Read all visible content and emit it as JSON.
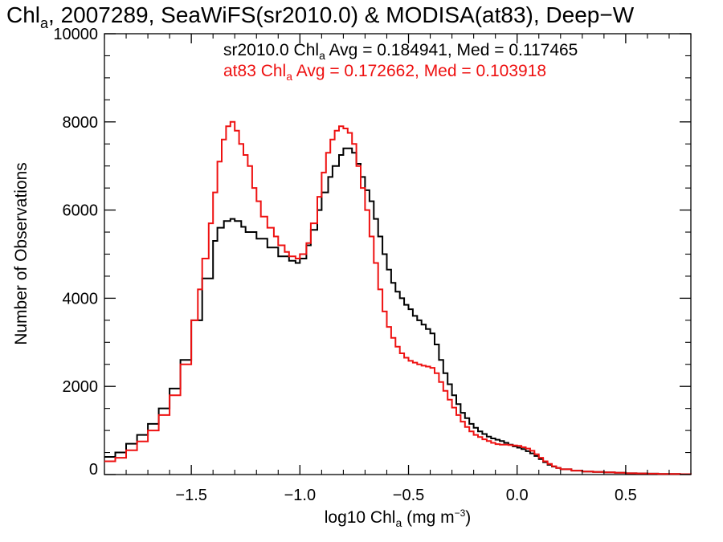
{
  "chart_data": {
    "type": "line",
    "step": true,
    "title": {
      "main": "Chl",
      "sub": "a",
      "rest": ", 2007289, SeaWiFS(sr2010.0) & MODISA(at83), Deep−W"
    },
    "xlabel": {
      "main": "log10 Chl",
      "sub": "a",
      "unit": " (mg m",
      "sup": "−3",
      "close": ")"
    },
    "ylabel": "Number of Observations",
    "xlim": [
      -1.9,
      0.8
    ],
    "ylim": [
      0,
      10000
    ],
    "xticks": [
      {
        "v": -1.5,
        "label": "−1.5"
      },
      {
        "v": -1.0,
        "label": "−1.0"
      },
      {
        "v": -0.5,
        "label": "−0.5"
      },
      {
        "v": 0.0,
        "label": "0.0"
      },
      {
        "v": 0.5,
        "label": "0.5"
      }
    ],
    "yticks": [
      {
        "v": 0,
        "label": "0"
      },
      {
        "v": 2000,
        "label": "2000"
      },
      {
        "v": 4000,
        "label": "4000"
      },
      {
        "v": 6000,
        "label": "6000"
      },
      {
        "v": 8000,
        "label": "8000"
      },
      {
        "v": 10000,
        "label": "10000"
      }
    ],
    "grid": false,
    "annotations": [
      {
        "prefix": "sr2010.0 Chl",
        "sub": "a",
        "suffix": " Avg = 0.184941, Med = 0.117465",
        "color": "#000000"
      },
      {
        "prefix": "at83 Chl",
        "sub": "a",
        "suffix": " Avg = 0.172662, Med = 0.103918",
        "color": "#ee1111"
      }
    ],
    "series": [
      {
        "color": "#000000",
        "x": [
          -1.9,
          -1.85,
          -1.8,
          -1.75,
          -1.7,
          -1.65,
          -1.6,
          -1.55,
          -1.5,
          -1.45,
          -1.4,
          -1.38,
          -1.35,
          -1.32,
          -1.3,
          -1.27,
          -1.25,
          -1.2,
          -1.15,
          -1.1,
          -1.05,
          -1.02,
          -1.0,
          -0.97,
          -0.95,
          -0.92,
          -0.9,
          -0.87,
          -0.85,
          -0.82,
          -0.8,
          -0.78,
          -0.76,
          -0.74,
          -0.72,
          -0.7,
          -0.68,
          -0.66,
          -0.64,
          -0.62,
          -0.6,
          -0.58,
          -0.56,
          -0.54,
          -0.52,
          -0.5,
          -0.48,
          -0.46,
          -0.44,
          -0.42,
          -0.4,
          -0.38,
          -0.36,
          -0.34,
          -0.32,
          -0.3,
          -0.28,
          -0.26,
          -0.24,
          -0.22,
          -0.2,
          -0.18,
          -0.16,
          -0.14,
          -0.12,
          -0.1,
          -0.08,
          -0.06,
          -0.04,
          -0.02,
          0.0,
          0.02,
          0.04,
          0.06,
          0.08,
          0.1,
          0.12,
          0.14,
          0.16,
          0.18,
          0.2,
          0.25,
          0.3,
          0.35,
          0.4,
          0.45,
          0.5,
          0.55,
          0.6,
          0.65,
          0.7,
          0.75,
          0.8
        ],
        "values": [
          400,
          500,
          700,
          900,
          1150,
          1500,
          1950,
          2600,
          3500,
          4450,
          5300,
          5600,
          5750,
          5800,
          5750,
          5620,
          5500,
          5350,
          5150,
          4950,
          4850,
          4800,
          4900,
          5200,
          5550,
          6000,
          6400,
          6750,
          7000,
          7250,
          7400,
          7400,
          7300,
          7050,
          6750,
          6450,
          6200,
          5800,
          5400,
          5000,
          4650,
          4350,
          4150,
          4000,
          3850,
          3750,
          3600,
          3500,
          3400,
          3300,
          3200,
          2950,
          2600,
          2300,
          2050,
          1800,
          1600,
          1400,
          1280,
          1150,
          1060,
          980,
          920,
          860,
          820,
          790,
          760,
          720,
          680,
          640,
          610,
          580,
          530,
          480,
          420,
          350,
          280,
          220,
          180,
          150,
          120,
          90,
          70,
          60,
          50,
          40,
          30,
          25,
          20,
          15,
          12,
          10,
          5
        ]
      },
      {
        "color": "#ee1111",
        "x": [
          -1.9,
          -1.85,
          -1.8,
          -1.75,
          -1.7,
          -1.65,
          -1.6,
          -1.55,
          -1.5,
          -1.47,
          -1.45,
          -1.42,
          -1.4,
          -1.38,
          -1.36,
          -1.34,
          -1.32,
          -1.3,
          -1.28,
          -1.26,
          -1.24,
          -1.22,
          -1.2,
          -1.18,
          -1.15,
          -1.12,
          -1.1,
          -1.07,
          -1.05,
          -1.02,
          -1.0,
          -0.97,
          -0.95,
          -0.92,
          -0.9,
          -0.88,
          -0.86,
          -0.84,
          -0.82,
          -0.8,
          -0.78,
          -0.76,
          -0.74,
          -0.72,
          -0.7,
          -0.68,
          -0.66,
          -0.64,
          -0.62,
          -0.6,
          -0.58,
          -0.56,
          -0.54,
          -0.52,
          -0.5,
          -0.48,
          -0.46,
          -0.44,
          -0.42,
          -0.4,
          -0.38,
          -0.36,
          -0.34,
          -0.32,
          -0.3,
          -0.28,
          -0.26,
          -0.24,
          -0.22,
          -0.2,
          -0.18,
          -0.16,
          -0.14,
          -0.12,
          -0.1,
          -0.08,
          -0.06,
          -0.04,
          -0.02,
          0.0,
          0.02,
          0.04,
          0.06,
          0.08,
          0.1,
          0.12,
          0.14,
          0.16,
          0.18,
          0.2,
          0.25,
          0.3,
          0.35,
          0.4,
          0.45,
          0.5,
          0.55,
          0.6,
          0.65,
          0.7,
          0.75,
          0.8
        ],
        "values": [
          300,
          380,
          550,
          750,
          1000,
          1350,
          1800,
          2500,
          3500,
          4200,
          4900,
          5700,
          6400,
          7100,
          7600,
          7900,
          8000,
          7800,
          7500,
          7250,
          7000,
          6500,
          6200,
          5850,
          5600,
          5400,
          5200,
          5050,
          4950,
          4900,
          5000,
          5250,
          5700,
          6300,
          6850,
          7300,
          7600,
          7800,
          7900,
          7850,
          7750,
          7500,
          7000,
          6500,
          6000,
          5400,
          4800,
          4200,
          3700,
          3350,
          3100,
          2900,
          2750,
          2650,
          2580,
          2540,
          2500,
          2470,
          2450,
          2420,
          2300,
          2100,
          1900,
          1700,
          1520,
          1350,
          1200,
          1080,
          980,
          900,
          850,
          800,
          760,
          720,
          690,
          680,
          680,
          670,
          660,
          650,
          620,
          590,
          540,
          460,
          380,
          300,
          240,
          190,
          150,
          120,
          90,
          70,
          60,
          50,
          40,
          30,
          25,
          20,
          15,
          12,
          10,
          5
        ]
      }
    ]
  }
}
